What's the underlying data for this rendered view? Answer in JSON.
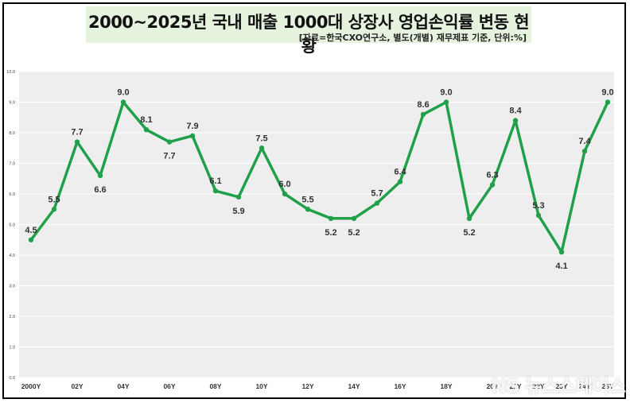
{
  "title": "2000~2025년 국내 매출 1000대 상장사 영업손익률 변동 현황",
  "subtitle": "[자료=한국CXO연구소, 별도(개별) 재무제표 기준, 단위:%]",
  "watermark": "NS 뉴스스페이스",
  "colors": {
    "line": "#21a04a",
    "plot_bg": "#eeeeee",
    "grid": "#ffffff",
    "title_bg": "#e6f3df"
  },
  "chart_data": {
    "type": "line",
    "title": "2000~2025년 국내 매출 1000대 상장사 영업손익률 변동 현황",
    "xlabel": "",
    "ylabel": "",
    "unit": "%",
    "ylim": [
      0,
      10
    ],
    "yticks": [
      "0.0",
      "1.0",
      "2.0",
      "3.0",
      "4.0",
      "5.0",
      "6.0",
      "7.0",
      "8.0",
      "9.0",
      "10.0"
    ],
    "x": [
      "2000Y",
      "2001Y",
      "2002Y",
      "2003Y",
      "2004Y",
      "2005Y",
      "2006Y",
      "2007Y",
      "2008Y",
      "2009Y",
      "2010Y",
      "2011Y",
      "2012Y",
      "2013Y",
      "2014Y",
      "2015Y",
      "2016Y",
      "2017Y",
      "2018Y",
      "2019Y",
      "2020Y",
      "2021Y",
      "2022Y",
      "2023Y",
      "2024Y",
      "2025Y"
    ],
    "x_tick_labels": [
      "2000Y",
      "",
      "02Y",
      "",
      "04Y",
      "",
      "06Y",
      "",
      "08Y",
      "",
      "10Y",
      "",
      "12Y",
      "",
      "14Y",
      "",
      "16Y",
      "",
      "18Y",
      "",
      "20Y",
      "21Y",
      "22Y",
      "23Y",
      "24Y",
      "25Y"
    ],
    "series": [
      {
        "name": "영업손익률",
        "values": [
          4.5,
          5.5,
          7.7,
          6.6,
          9.0,
          8.1,
          7.7,
          7.9,
          6.1,
          5.9,
          7.5,
          6.0,
          5.5,
          5.2,
          5.2,
          5.7,
          6.4,
          8.6,
          9.0,
          5.2,
          6.3,
          8.4,
          5.3,
          4.1,
          7.4,
          9.0
        ],
        "labels": [
          "4.5",
          "5.5",
          "7.7",
          "6.6",
          "9.0",
          "8.1",
          "7.7",
          "7.9",
          "6.1",
          "5.9",
          "7.5",
          "6.0",
          "5.5",
          "5.2",
          "5.2",
          "5.7",
          "6.4",
          "8.6",
          "9.0",
          "5.2",
          "6.3",
          "8.4",
          "5.3",
          "4.1",
          "7.4",
          "9.0"
        ]
      }
    ],
    "grid": true,
    "legend": "none"
  }
}
